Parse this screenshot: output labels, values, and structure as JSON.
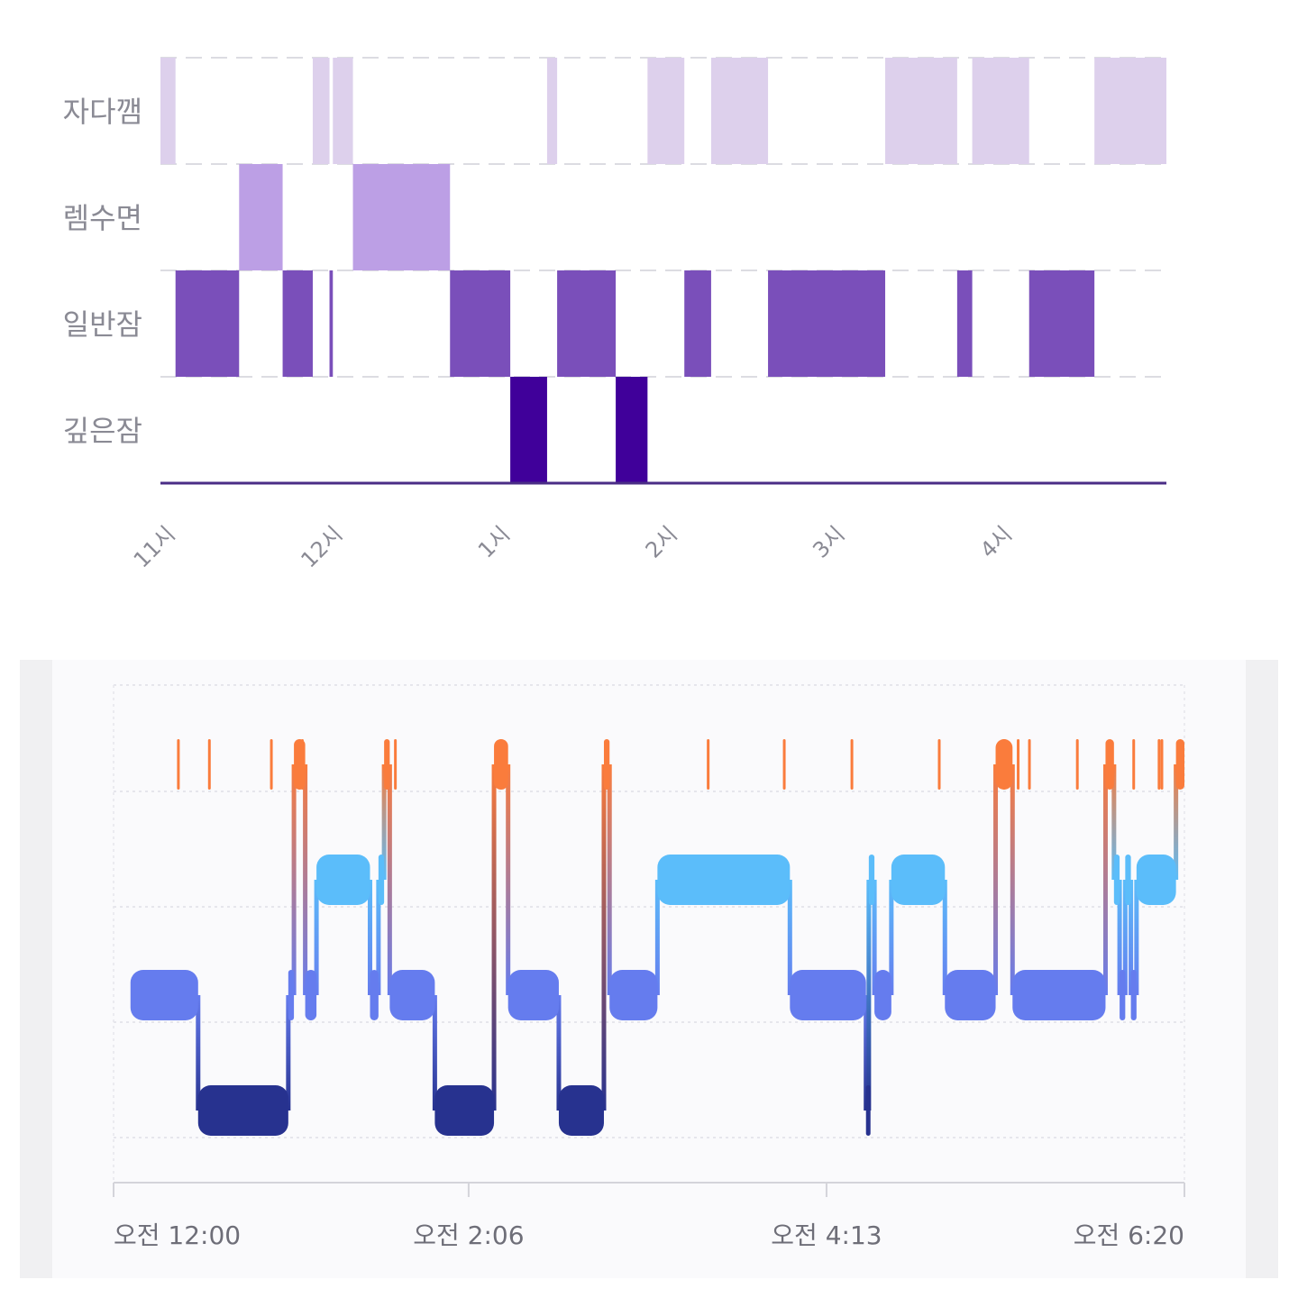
{
  "chart_data": [
    {
      "type": "bar",
      "subtype": "sleep-stage-timeline",
      "stages": [
        "자다깸",
        "렘수면",
        "일반잠",
        "깊은잠"
      ],
      "x_tick_labels": [
        "11시",
        "12시",
        "1시",
        "2시",
        "3시",
        "4시"
      ],
      "x_tick_hours": [
        23,
        24,
        25,
        26,
        27,
        28
      ],
      "xlim_hours": [
        22.97,
        28.98
      ],
      "colors": {
        "자다깸": "#ddd0ec",
        "렘수면": "#bc9fe5",
        "일반잠": "#7a4fba",
        "깊은잠": "#40009a"
      },
      "grid": "dashed",
      "segments": [
        {
          "stage": "자다깸",
          "start": 22.97,
          "end": 23.06
        },
        {
          "stage": "일반잠",
          "start": 23.06,
          "end": 23.44
        },
        {
          "stage": "렘수면",
          "start": 23.44,
          "end": 23.7
        },
        {
          "stage": "일반잠",
          "start": 23.7,
          "end": 23.88
        },
        {
          "stage": "자다깸",
          "start": 23.88,
          "end": 23.98
        },
        {
          "stage": "일반잠",
          "start": 23.98,
          "end": 24.0
        },
        {
          "stage": "자다깸",
          "start": 24.0,
          "end": 24.12
        },
        {
          "stage": "렘수면",
          "start": 24.12,
          "end": 24.7
        },
        {
          "stage": "일반잠",
          "start": 24.7,
          "end": 25.06
        },
        {
          "stage": "깊은잠",
          "start": 25.06,
          "end": 25.28
        },
        {
          "stage": "자다깸",
          "start": 25.28,
          "end": 25.34
        },
        {
          "stage": "일반잠",
          "start": 25.34,
          "end": 25.69
        },
        {
          "stage": "깊은잠",
          "start": 25.69,
          "end": 25.88
        },
        {
          "stage": "자다깸",
          "start": 25.88,
          "end": 26.1
        },
        {
          "stage": "일반잠",
          "start": 26.1,
          "end": 26.26
        },
        {
          "stage": "자다깸",
          "start": 26.26,
          "end": 26.6
        },
        {
          "stage": "일반잠",
          "start": 26.6,
          "end": 27.3
        },
        {
          "stage": "자다깸",
          "start": 27.3,
          "end": 27.73
        },
        {
          "stage": "일반잠",
          "start": 27.73,
          "end": 27.82
        },
        {
          "stage": "자다깸",
          "start": 27.82,
          "end": 28.16
        },
        {
          "stage": "일반잠",
          "start": 28.16,
          "end": 28.55
        },
        {
          "stage": "자다깸",
          "start": 28.55,
          "end": 28.98
        }
      ]
    },
    {
      "type": "bar",
      "subtype": "sleep-stage-hypnogram",
      "x_tick_labels": [
        "오전 12:00",
        "오전 2:06",
        "오전 4:13",
        "오전 6:20"
      ],
      "x_tick_minutes": [
        0,
        126,
        253,
        380
      ],
      "xlim_minutes": [
        0,
        380
      ],
      "levels": 4,
      "colors": [
        "#fa7c3c",
        "#5bbdfa",
        "#657cee",
        "#27328f"
      ],
      "grid": "dotted",
      "segments": [
        {
          "level": 2,
          "start": 6,
          "end": 30
        },
        {
          "level": 3,
          "start": 30,
          "end": 62
        },
        {
          "level": 2,
          "start": 62,
          "end": 64
        },
        {
          "level": 0,
          "start": 64,
          "end": 68
        },
        {
          "level": 2,
          "start": 68,
          "end": 72
        },
        {
          "level": 1,
          "start": 72,
          "end": 91
        },
        {
          "level": 2,
          "start": 91,
          "end": 94
        },
        {
          "level": 1,
          "start": 94,
          "end": 96
        },
        {
          "level": 0,
          "start": 96,
          "end": 98
        },
        {
          "level": 2,
          "start": 98,
          "end": 114
        },
        {
          "level": 3,
          "start": 114,
          "end": 135
        },
        {
          "level": 0,
          "start": 135,
          "end": 140
        },
        {
          "level": 2,
          "start": 140,
          "end": 158
        },
        {
          "level": 3,
          "start": 158,
          "end": 174
        },
        {
          "level": 0,
          "start": 174,
          "end": 176
        },
        {
          "level": 2,
          "start": 176,
          "end": 193
        },
        {
          "level": 1,
          "start": 193,
          "end": 240
        },
        {
          "level": 2,
          "start": 240,
          "end": 267
        },
        {
          "level": 3,
          "start": 267,
          "end": 268
        },
        {
          "level": 1,
          "start": 268,
          "end": 270
        },
        {
          "level": 2,
          "start": 270,
          "end": 276
        },
        {
          "level": 1,
          "start": 276,
          "end": 295
        },
        {
          "level": 2,
          "start": 295,
          "end": 313
        },
        {
          "level": 0,
          "start": 313,
          "end": 319
        },
        {
          "level": 2,
          "start": 319,
          "end": 352
        },
        {
          "level": 0,
          "start": 352,
          "end": 355
        },
        {
          "level": 1,
          "start": 355,
          "end": 357
        },
        {
          "level": 2,
          "start": 357,
          "end": 359
        },
        {
          "level": 1,
          "start": 359,
          "end": 361
        },
        {
          "level": 2,
          "start": 361,
          "end": 363
        },
        {
          "level": 1,
          "start": 363,
          "end": 377
        },
        {
          "level": 0,
          "start": 377,
          "end": 380
        }
      ],
      "brief_wakes_minutes": [
        23,
        34,
        56,
        67,
        100,
        211,
        238,
        262,
        293,
        316,
        321,
        325,
        342,
        362,
        371,
        372
      ]
    }
  ]
}
